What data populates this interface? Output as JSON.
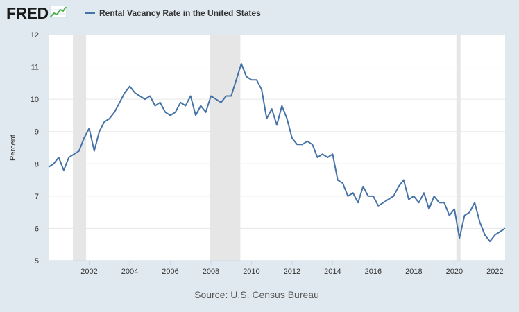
{
  "header": {
    "logo_text": "FRED",
    "logo_icon": "chart-trend-icon",
    "legend_label": "Rental Vacancy Rate in the United States"
  },
  "source": "Source: U.S. Census Bureau",
  "colors": {
    "background": "#e1e9f0",
    "plot_background": "#ffffff",
    "series": "#4572a7",
    "recession_shade": "#e6e6e6",
    "grid": "#e6e6e6"
  },
  "chart_data": {
    "type": "line",
    "title": "",
    "xlabel": "",
    "ylabel": "Percent",
    "xlim": [
      2000,
      2022.5
    ],
    "ylim": [
      5,
      12
    ],
    "y_ticks": [
      "5",
      "6",
      "7",
      "8",
      "9",
      "10",
      "11",
      "12"
    ],
    "x_ticks": [
      "2002",
      "2004",
      "2006",
      "2008",
      "2010",
      "2012",
      "2014",
      "2016",
      "2018",
      "2020",
      "2022"
    ],
    "grid": true,
    "legend": "top-left",
    "recessions": [
      [
        2001.2,
        2001.85
      ],
      [
        2007.95,
        2009.45
      ],
      [
        2020.1,
        2020.3
      ]
    ],
    "series": [
      {
        "name": "Rental Vacancy Rate in the United States",
        "x": [
          2000.0,
          2000.25,
          2000.5,
          2000.75,
          2001.0,
          2001.25,
          2001.5,
          2001.75,
          2002.0,
          2002.25,
          2002.5,
          2002.75,
          2003.0,
          2003.25,
          2003.5,
          2003.75,
          2004.0,
          2004.25,
          2004.5,
          2004.75,
          2005.0,
          2005.25,
          2005.5,
          2005.75,
          2006.0,
          2006.25,
          2006.5,
          2006.75,
          2007.0,
          2007.25,
          2007.5,
          2007.75,
          2008.0,
          2008.25,
          2008.5,
          2008.75,
          2009.0,
          2009.25,
          2009.5,
          2009.75,
          2010.0,
          2010.25,
          2010.5,
          2010.75,
          2011.0,
          2011.25,
          2011.5,
          2011.75,
          2012.0,
          2012.25,
          2012.5,
          2012.75,
          2013.0,
          2013.25,
          2013.5,
          2013.75,
          2014.0,
          2014.25,
          2014.5,
          2014.75,
          2015.0,
          2015.25,
          2015.5,
          2015.75,
          2016.0,
          2016.25,
          2016.5,
          2016.75,
          2017.0,
          2017.25,
          2017.5,
          2017.75,
          2018.0,
          2018.25,
          2018.5,
          2018.75,
          2019.0,
          2019.25,
          2019.5,
          2019.75,
          2020.0,
          2020.25,
          2020.5,
          2020.75,
          2021.0,
          2021.25,
          2021.5,
          2021.75,
          2022.0,
          2022.25,
          2022.5
        ],
        "y": [
          7.9,
          8.0,
          8.2,
          7.8,
          8.2,
          8.3,
          8.4,
          8.8,
          9.1,
          8.4,
          9.0,
          9.3,
          9.4,
          9.6,
          9.9,
          10.2,
          10.4,
          10.2,
          10.1,
          10.0,
          10.1,
          9.8,
          9.9,
          9.6,
          9.5,
          9.6,
          9.9,
          9.8,
          10.1,
          9.5,
          9.8,
          9.6,
          10.1,
          10.0,
          9.9,
          10.1,
          10.1,
          10.6,
          11.1,
          10.7,
          10.6,
          10.6,
          10.3,
          9.4,
          9.7,
          9.2,
          9.8,
          9.4,
          8.8,
          8.6,
          8.6,
          8.7,
          8.6,
          8.2,
          8.3,
          8.2,
          8.3,
          7.5,
          7.4,
          7.0,
          7.1,
          6.8,
          7.3,
          7.0,
          7.0,
          6.7,
          6.8,
          6.9,
          7.0,
          7.3,
          7.5,
          6.9,
          7.0,
          6.8,
          7.1,
          6.6,
          7.0,
          6.8,
          6.8,
          6.4,
          6.6,
          5.7,
          6.4,
          6.5,
          6.8,
          6.2,
          5.8,
          5.6,
          5.8,
          5.9,
          6.0
        ]
      }
    ]
  }
}
